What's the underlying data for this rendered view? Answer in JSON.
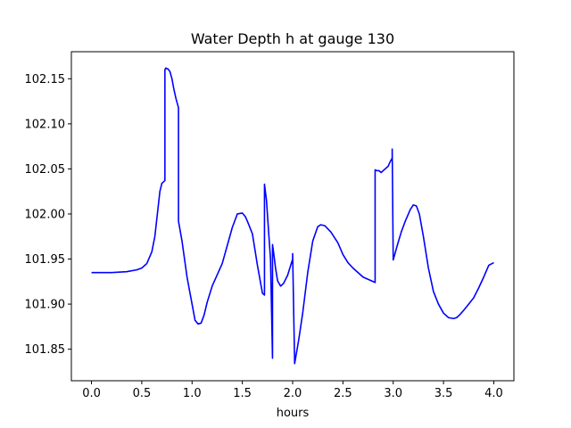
{
  "chart_data": {
    "type": "line",
    "title": "Water Depth h at gauge 130",
    "xlabel": "hours",
    "ylabel": "",
    "xlim": [
      -0.2,
      4.2
    ],
    "ylim": [
      101.815,
      102.18
    ],
    "xticks": [
      0.0,
      0.5,
      1.0,
      1.5,
      2.0,
      2.5,
      3.0,
      3.5,
      4.0
    ],
    "xtick_labels": [
      "0.0",
      "0.5",
      "1.0",
      "1.5",
      "2.0",
      "2.5",
      "3.0",
      "3.5",
      "4.0"
    ],
    "yticks": [
      101.85,
      101.9,
      101.95,
      102.0,
      102.05,
      102.1,
      102.15
    ],
    "ytick_labels": [
      "101.85",
      "101.90",
      "101.95",
      "102.00",
      "102.05",
      "102.10",
      "102.15"
    ],
    "grid": false,
    "line_color": "#0000ff",
    "series": [
      {
        "x": [
          0.0,
          0.2,
          0.35,
          0.45,
          0.5,
          0.55,
          0.6,
          0.63,
          0.66,
          0.68,
          0.7,
          0.72,
          0.73,
          0.73,
          0.74,
          0.75,
          0.76,
          0.78,
          0.8,
          0.82,
          0.84,
          0.865,
          0.865,
          0.9,
          0.95,
          1.0,
          1.03,
          1.06,
          1.09,
          1.12,
          1.15,
          1.2,
          1.3,
          1.4,
          1.45,
          1.5,
          1.53,
          1.55,
          1.6,
          1.65,
          1.7,
          1.72,
          1.72,
          1.74,
          1.76,
          1.78,
          1.8,
          1.8,
          1.81,
          1.83,
          1.85,
          1.88,
          1.91,
          1.95,
          2.0,
          2.0,
          2.02,
          2.06,
          2.1,
          2.15,
          2.2,
          2.25,
          2.28,
          2.32,
          2.38,
          2.45,
          2.5,
          2.55,
          2.6,
          2.7,
          2.8,
          2.82,
          2.82,
          2.84,
          2.86,
          2.88,
          2.9,
          2.92,
          2.95,
          2.97,
          2.99,
          2.99,
          3.0,
          3.04,
          3.08,
          3.12,
          3.17,
          3.2,
          3.23,
          3.26,
          3.3,
          3.35,
          3.4,
          3.45,
          3.5,
          3.55,
          3.6,
          3.63,
          3.66,
          3.7,
          3.75,
          3.8,
          3.85,
          3.9,
          3.95,
          4.0
        ],
        "y": [
          101.935,
          101.935,
          101.936,
          101.938,
          101.94,
          101.945,
          101.958,
          101.975,
          102.005,
          102.025,
          102.034,
          102.036,
          102.037,
          102.16,
          102.162,
          102.161,
          102.161,
          102.158,
          102.15,
          102.138,
          102.128,
          102.118,
          101.992,
          101.97,
          101.93,
          101.9,
          101.882,
          101.878,
          101.879,
          101.888,
          101.902,
          101.92,
          101.945,
          101.985,
          102.0,
          102.001,
          101.997,
          101.992,
          101.978,
          101.943,
          101.912,
          101.91,
          102.033,
          102.015,
          101.982,
          101.95,
          101.84,
          101.966,
          101.958,
          101.94,
          101.926,
          101.92,
          101.923,
          101.932,
          101.95,
          101.956,
          101.834,
          101.86,
          101.89,
          101.935,
          101.97,
          101.986,
          101.988,
          101.987,
          101.98,
          101.968,
          101.955,
          101.946,
          101.94,
          101.93,
          101.925,
          101.924,
          102.049,
          102.048,
          102.048,
          102.046,
          102.048,
          102.05,
          102.053,
          102.058,
          102.062,
          102.072,
          101.949,
          101.965,
          101.98,
          101.992,
          102.005,
          102.01,
          102.009,
          102.0,
          101.975,
          101.94,
          101.914,
          101.9,
          101.89,
          101.885,
          101.884,
          101.885,
          101.888,
          101.893,
          101.9,
          101.907,
          101.918,
          101.93,
          101.943,
          101.946
        ]
      }
    ]
  }
}
